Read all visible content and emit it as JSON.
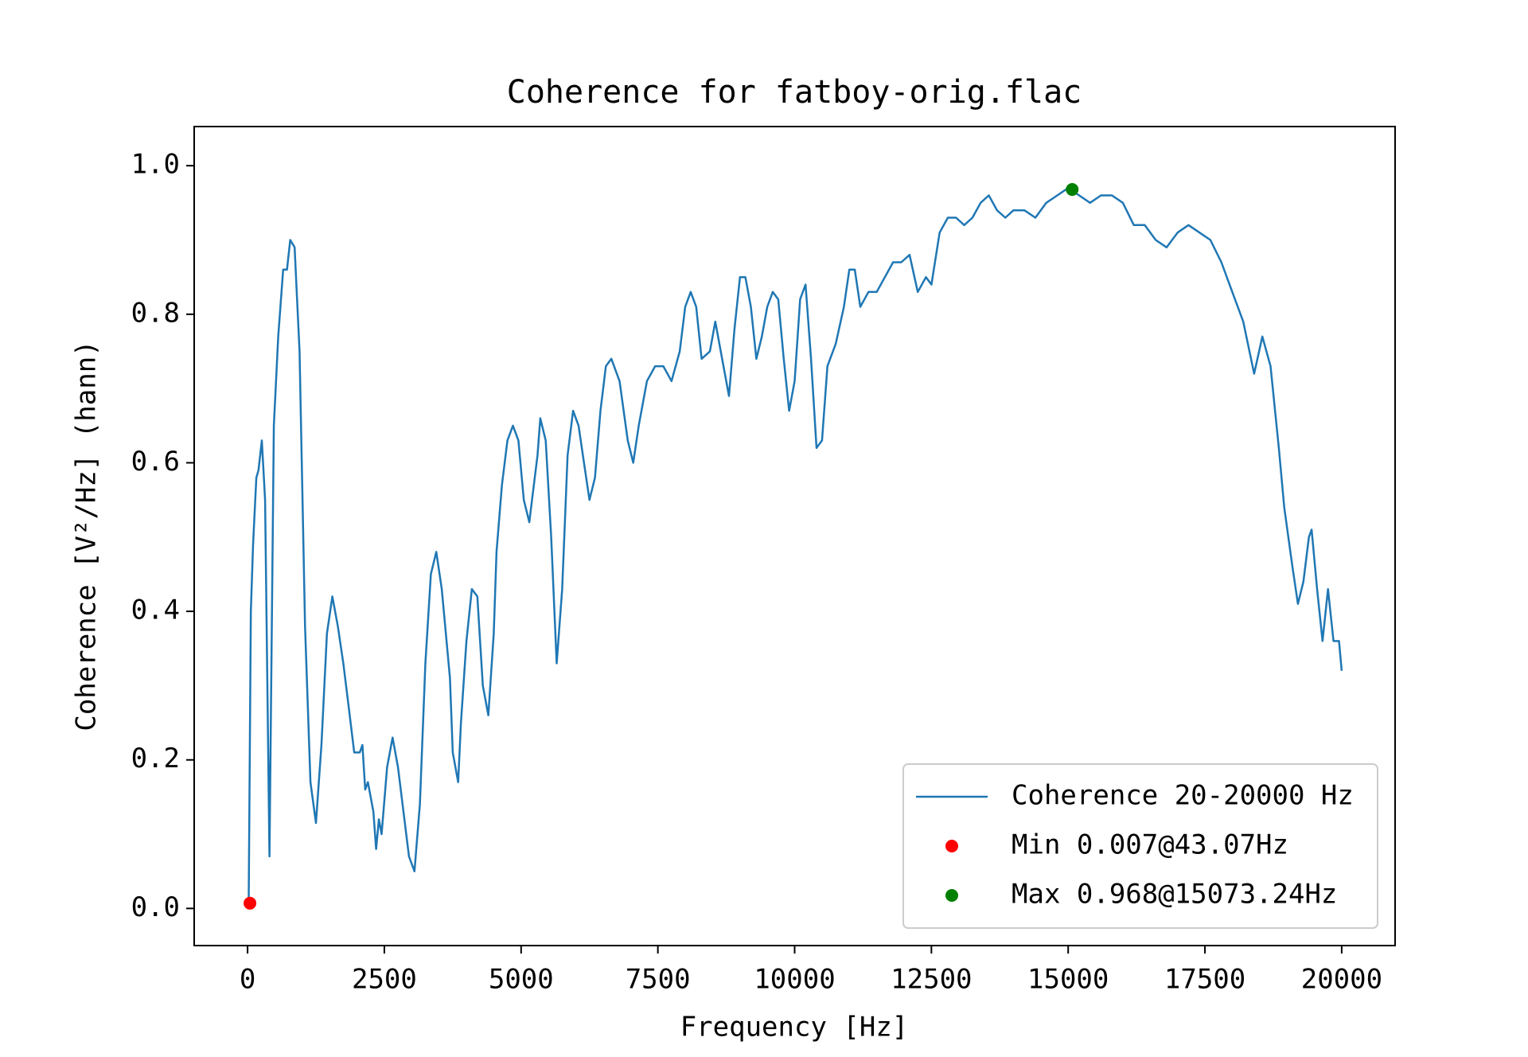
{
  "chart_data": {
    "type": "line",
    "title": "Coherence for fatboy-orig.flac",
    "xlabel": "Frequency [Hz]",
    "ylabel": "Coherence [V²/Hz] (hann)",
    "xlim": [
      -976,
      20976
    ],
    "ylim": [
      -0.05,
      1.0527
    ],
    "xticks": [
      0,
      2500,
      5000,
      7500,
      10000,
      12500,
      15000,
      17500,
      20000
    ],
    "yticks": [
      {
        "value": 0,
        "label": "0.0"
      },
      0.2,
      0.4,
      0.6,
      0.8,
      {
        "value": 1,
        "label": "1.0"
      }
    ],
    "legend": "lower right",
    "series": [
      {
        "name": "Coherence 20-20000 Hz",
        "type": "line",
        "color": "#1f77b4",
        "x": [
          20,
          60,
          100,
          160,
          200,
          260,
          320,
          400,
          480,
          560,
          650,
          720,
          780,
          860,
          950,
          1050,
          1150,
          1250,
          1350,
          1450,
          1550,
          1650,
          1750,
          1850,
          1950,
          2050,
          2100,
          2150,
          2200,
          2300,
          2350,
          2400,
          2450,
          2550,
          2650,
          2750,
          2850,
          2950,
          3050,
          3150,
          3250,
          3350,
          3450,
          3550,
          3700,
          3750,
          3850,
          3900,
          4000,
          4100,
          4200,
          4300,
          4400,
          4500,
          4550,
          4650,
          4750,
          4850,
          4950,
          5050,
          5150,
          5200,
          5300,
          5350,
          5450,
          5550,
          5650,
          5750,
          5850,
          5950,
          6050,
          6150,
          6250,
          6350,
          6450,
          6550,
          6650,
          6800,
          6950,
          7050,
          7150,
          7300,
          7450,
          7600,
          7750,
          7900,
          8000,
          8100,
          8200,
          8300,
          8450,
          8550,
          8700,
          8800,
          8900,
          9000,
          9100,
          9200,
          9300,
          9400,
          9500,
          9600,
          9700,
          9800,
          9900,
          10000,
          10100,
          10200,
          10300,
          10400,
          10500,
          10600,
          10750,
          10900,
          11000,
          11100,
          11200,
          11350,
          11500,
          11650,
          11800,
          11950,
          12100,
          12250,
          12400,
          12500,
          12650,
          12800,
          12950,
          13100,
          13250,
          13400,
          13550,
          13700,
          13850,
          14000,
          14200,
          14400,
          14600,
          14800,
          15000,
          15200,
          15400,
          15600,
          15800,
          16000,
          16200,
          16400,
          16600,
          16800,
          17000,
          17200,
          17400,
          17600,
          17800,
          18000,
          18200,
          18400,
          18550,
          18700,
          18850,
          18950,
          19100,
          19200,
          19300,
          19400,
          19450,
          19550,
          19650,
          19750,
          19850,
          19950,
          20000
        ],
        "values": [
          0.01,
          0.4,
          0.49,
          0.58,
          0.59,
          0.63,
          0.55,
          0.07,
          0.65,
          0.77,
          0.86,
          0.86,
          0.9,
          0.89,
          0.75,
          0.38,
          0.17,
          0.115,
          0.22,
          0.37,
          0.42,
          0.38,
          0.33,
          0.27,
          0.21,
          0.21,
          0.22,
          0.16,
          0.17,
          0.13,
          0.08,
          0.12,
          0.1,
          0.19,
          0.23,
          0.19,
          0.13,
          0.07,
          0.05,
          0.14,
          0.33,
          0.45,
          0.48,
          0.43,
          0.31,
          0.21,
          0.17,
          0.25,
          0.36,
          0.43,
          0.42,
          0.3,
          0.26,
          0.37,
          0.48,
          0.57,
          0.63,
          0.65,
          0.63,
          0.55,
          0.52,
          0.55,
          0.61,
          0.66,
          0.63,
          0.5,
          0.33,
          0.43,
          0.61,
          0.67,
          0.65,
          0.6,
          0.55,
          0.58,
          0.67,
          0.73,
          0.74,
          0.71,
          0.63,
          0.6,
          0.65,
          0.71,
          0.73,
          0.73,
          0.71,
          0.75,
          0.81,
          0.83,
          0.81,
          0.74,
          0.75,
          0.79,
          0.73,
          0.69,
          0.78,
          0.85,
          0.85,
          0.81,
          0.74,
          0.77,
          0.81,
          0.83,
          0.82,
          0.74,
          0.67,
          0.71,
          0.82,
          0.84,
          0.74,
          0.62,
          0.63,
          0.73,
          0.76,
          0.81,
          0.86,
          0.86,
          0.81,
          0.83,
          0.83,
          0.85,
          0.87,
          0.87,
          0.88,
          0.83,
          0.85,
          0.84,
          0.91,
          0.93,
          0.93,
          0.92,
          0.93,
          0.95,
          0.96,
          0.94,
          0.93,
          0.94,
          0.94,
          0.93,
          0.95,
          0.96,
          0.97,
          0.96,
          0.95,
          0.96,
          0.96,
          0.95,
          0.92,
          0.92,
          0.9,
          0.89,
          0.91,
          0.92,
          0.91,
          0.9,
          0.87,
          0.83,
          0.79,
          0.72,
          0.77,
          0.73,
          0.62,
          0.54,
          0.46,
          0.41,
          0.44,
          0.5,
          0.51,
          0.43,
          0.36,
          0.43,
          0.36,
          0.36,
          0.32
        ]
      },
      {
        "name": "Min 0.007@43.07Hz",
        "type": "scatter",
        "color": "#ff0000",
        "x": [
          43.07
        ],
        "values": [
          0.007
        ]
      },
      {
        "name": "Max 0.968@15073.24Hz",
        "type": "scatter",
        "color": "#008000",
        "x": [
          15073.24
        ],
        "values": [
          0.968
        ]
      }
    ]
  }
}
